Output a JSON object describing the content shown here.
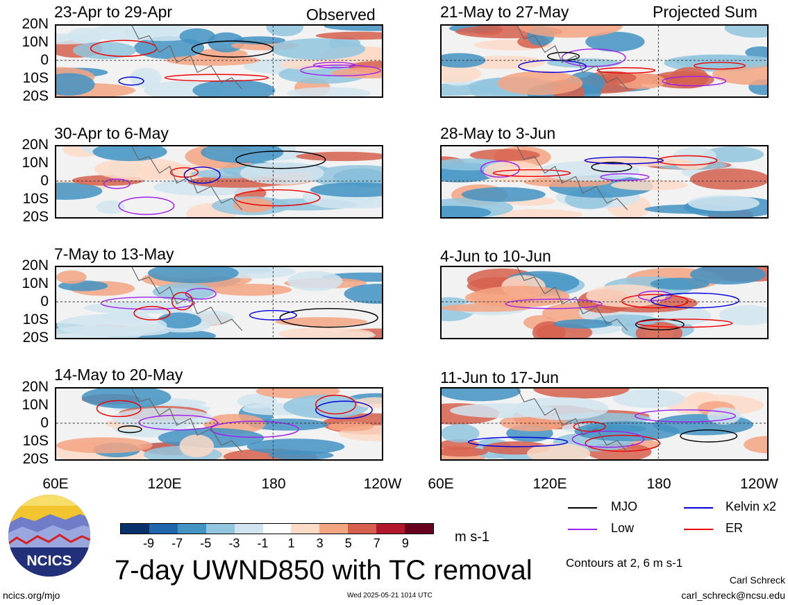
{
  "header": {
    "left_label": "Observed",
    "right_label": "Projected Sum"
  },
  "panels_left": [
    "23-Apr to 29-Apr",
    "30-Apr to 6-May",
    "7-May to 13-May",
    "14-May to 20-May"
  ],
  "panels_right": [
    "21-May to 27-May",
    "28-May to 3-Jun",
    "4-Jun to 10-Jun",
    "11-Jun to 17-Jun"
  ],
  "lat_labels": [
    "20N",
    "10N",
    "0",
    "10S",
    "20S"
  ],
  "lon_labels": [
    "60E",
    "120E",
    "180",
    "120W"
  ],
  "colorbar": {
    "ticks": [
      "-9",
      "-7",
      "-5",
      "-3",
      "-1",
      "1",
      "3",
      "5",
      "7",
      "9"
    ],
    "colors": [
      "#08306b",
      "#2166ac",
      "#4393c3",
      "#92c5de",
      "#d1e5f0",
      "#ffffff",
      "#fddbc7",
      "#f4a582",
      "#d6604d",
      "#b2182b",
      "#67001f"
    ],
    "units": "m s-1"
  },
  "legend": {
    "items": [
      {
        "label": "MJO",
        "color": "#000000"
      },
      {
        "label": "Kelvin x2",
        "color": "#0000dd"
      },
      {
        "label": "Low",
        "color": "#a020f0"
      },
      {
        "label": "ER",
        "color": "#ee0000"
      }
    ],
    "contours_note": "Contours at 2, 6 m s-1"
  },
  "logo": {
    "text": "NCICS"
  },
  "title": "7-day UWND850 with TC removal",
  "footer": {
    "url": "ncics.org/mjo",
    "timestamp": "Wed 2025-05-21 1014 UTC",
    "author": "Carl Schreck",
    "email": "carl_schreck@ncsu.edu"
  },
  "chart_data": {
    "type": "heatmap",
    "title": "7-day UWND850 with TC removal",
    "variable": "UWND850 anomaly",
    "units": "m s-1",
    "x_range": [
      "60E",
      "120W"
    ],
    "y_range": [
      "20S",
      "20N"
    ],
    "color_levels": [
      -9,
      -7,
      -5,
      -3,
      -1,
      1,
      3,
      5,
      7,
      9
    ],
    "contour_levels": [
      2,
      6
    ],
    "contour_series": [
      "MJO",
      "Kelvin x2",
      "Low",
      "ER"
    ],
    "panels": [
      {
        "period": "23-Apr to 29-Apr",
        "kind": "Observed"
      },
      {
        "period": "30-Apr to 6-May",
        "kind": "Observed"
      },
      {
        "period": "7-May to 13-May",
        "kind": "Observed"
      },
      {
        "period": "14-May to 20-May",
        "kind": "Observed"
      },
      {
        "period": "21-May to 27-May",
        "kind": "Projected Sum"
      },
      {
        "period": "28-May to 3-Jun",
        "kind": "Projected Sum"
      },
      {
        "period": "4-Jun to 10-Jun",
        "kind": "Projected Sum"
      },
      {
        "period": "11-Jun to 17-Jun",
        "kind": "Projected Sum"
      }
    ]
  }
}
